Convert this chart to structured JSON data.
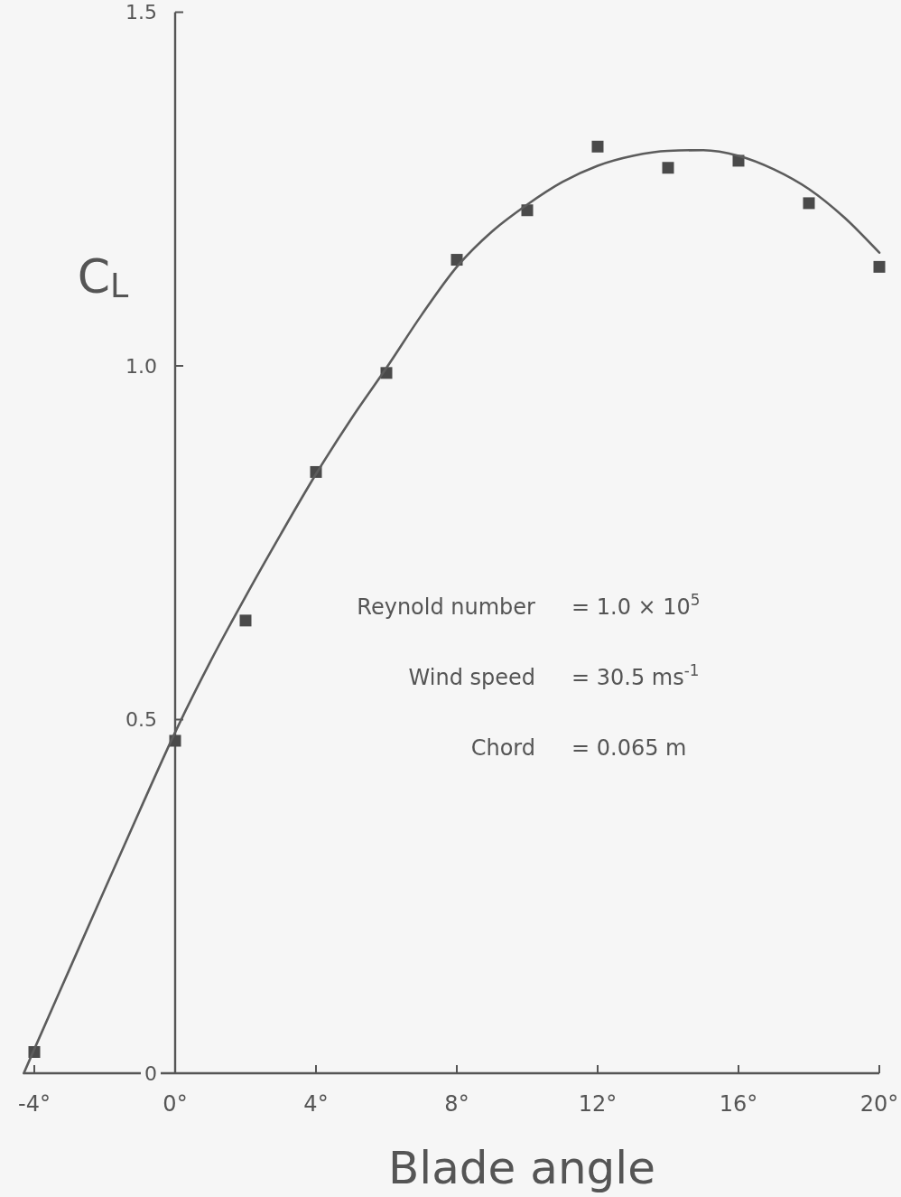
{
  "chart_data": {
    "type": "scatter",
    "xlabel": "Blade angle",
    "ylabel": "C$_{L}$",
    "xlim": [
      -4.3,
      20
    ],
    "ylim": [
      0,
      1.5
    ],
    "xticks": [
      {
        "value": -4,
        "label": "-4°"
      },
      {
        "value": 0,
        "label": "0°"
      },
      {
        "value": 4,
        "label": "4°"
      },
      {
        "value": 8,
        "label": "8°"
      },
      {
        "value": 12,
        "label": "12°"
      },
      {
        "value": 16,
        "label": "16°"
      },
      {
        "value": 20,
        "label": "20°"
      }
    ],
    "yticks": [
      0,
      0.5,
      {
        "value": 1,
        "label": "1.0"
      },
      1.5
    ],
    "marker": "square",
    "annotations": [
      "Reynold number = 1.0 × 10$^{5}$",
      "Wind speed = 30.5 ms$^{-1}$",
      "Chord = 0.065 m"
    ],
    "series": [
      {
        "color": "#4a4a4a",
        "x": [
          -4,
          0,
          2,
          4,
          6,
          8,
          10,
          12,
          14,
          16,
          18,
          20
        ],
        "values": [
          0.03,
          0.47,
          0.64,
          0.85,
          0.99,
          1.15,
          1.22,
          1.31,
          1.28,
          1.29,
          1.23,
          1.14
        ]
      },
      {
        "type": "line",
        "color": "#5c5c5c",
        "marker": "none",
        "line_style": "solid",
        "x": [
          -4.3,
          -4,
          -3,
          -2,
          -1,
          0,
          1,
          2,
          3,
          4,
          5,
          6,
          7,
          8,
          9,
          10,
          11,
          12,
          13,
          14,
          15,
          16,
          17,
          18,
          19,
          20
        ],
        "values": [
          0,
          0.034,
          0.147,
          0.26,
          0.372,
          0.482,
          0.582,
          0.674,
          0.762,
          0.847,
          0.925,
          0.997,
          1.072,
          1.14,
          1.19,
          1.228,
          1.26,
          1.283,
          1.297,
          1.304,
          1.305,
          1.297,
          1.278,
          1.25,
          1.21,
          1.16
        ]
      }
    ]
  }
}
